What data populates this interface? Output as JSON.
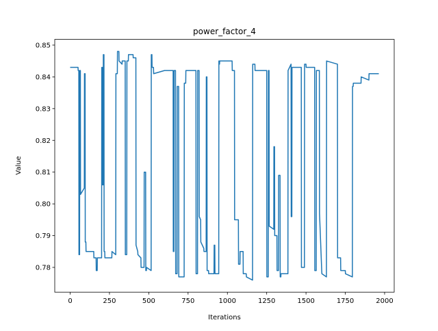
{
  "chart_data": {
    "type": "line",
    "title": "power_factor_4",
    "x_label": "Iterations",
    "y_label": "Value",
    "color": "#1f77b4",
    "x": [
      0,
      50,
      51,
      55,
      56,
      60,
      61,
      65,
      66,
      90,
      91,
      95,
      96,
      100,
      101,
      150,
      151,
      165,
      166,
      172,
      173,
      200,
      201,
      205,
      206,
      210,
      211,
      215,
      216,
      220,
      221,
      265,
      266,
      290,
      291,
      300,
      301,
      310,
      311,
      330,
      331,
      350,
      351,
      360,
      361,
      370,
      371,
      400,
      401,
      418,
      419,
      430,
      431,
      450,
      451,
      470,
      471,
      480,
      481,
      485,
      486,
      515,
      516,
      520,
      521,
      530,
      531,
      600,
      601,
      655,
      656,
      660,
      661,
      670,
      671,
      680,
      681,
      690,
      691,
      725,
      726,
      735,
      736,
      800,
      801,
      810,
      811,
      820,
      821,
      830,
      831,
      850,
      851,
      865,
      866,
      870,
      871,
      880,
      881,
      915,
      916,
      920,
      921,
      945,
      946,
      950,
      951,
      1030,
      1031,
      1045,
      1046,
      1070,
      1071,
      1080,
      1081,
      1100,
      1101,
      1120,
      1121,
      1160,
      1161,
      1175,
      1176,
      1250,
      1251,
      1260,
      1261,
      1265,
      1266,
      1295,
      1296,
      1300,
      1301,
      1315,
      1316,
      1325,
      1326,
      1335,
      1336,
      1340,
      1341,
      1385,
      1386,
      1405,
      1406,
      1410,
      1411,
      1470,
      1471,
      1490,
      1491,
      1500,
      1501,
      1555,
      1556,
      1565,
      1566,
      1585,
      1586,
      1600,
      1601,
      1630,
      1631,
      1700,
      1701,
      1720,
      1721,
      1750,
      1751,
      1795,
      1796,
      1800,
      1801,
      1850,
      1851,
      1900,
      1901,
      1963
    ],
    "values": [
      0.843,
      0.843,
      0.842,
      0.842,
      0.784,
      0.784,
      0.842,
      0.842,
      0.803,
      0.805,
      0.841,
      0.841,
      0.788,
      0.788,
      0.785,
      0.785,
      0.783,
      0.783,
      0.779,
      0.779,
      0.783,
      0.783,
      0.843,
      0.843,
      0.806,
      0.806,
      0.847,
      0.847,
      0.785,
      0.785,
      0.783,
      0.783,
      0.785,
      0.784,
      0.841,
      0.841,
      0.848,
      0.848,
      0.845,
      0.844,
      0.845,
      0.845,
      0.784,
      0.784,
      0.845,
      0.845,
      0.847,
      0.847,
      0.846,
      0.846,
      0.787,
      0.785,
      0.784,
      0.783,
      0.78,
      0.78,
      0.81,
      0.81,
      0.779,
      0.779,
      0.78,
      0.779,
      0.847,
      0.847,
      0.843,
      0.843,
      0.841,
      0.842,
      0.842,
      0.842,
      0.785,
      0.785,
      0.842,
      0.842,
      0.778,
      0.778,
      0.837,
      0.837,
      0.777,
      0.777,
      0.838,
      0.838,
      0.842,
      0.842,
      0.778,
      0.778,
      0.842,
      0.842,
      0.796,
      0.795,
      0.788,
      0.786,
      0.785,
      0.785,
      0.84,
      0.84,
      0.779,
      0.779,
      0.778,
      0.778,
      0.787,
      0.787,
      0.778,
      0.778,
      0.845,
      0.844,
      0.845,
      0.845,
      0.842,
      0.842,
      0.795,
      0.795,
      0.781,
      0.781,
      0.785,
      0.785,
      0.778,
      0.778,
      0.777,
      0.776,
      0.844,
      0.844,
      0.842,
      0.842,
      0.777,
      0.777,
      0.842,
      0.842,
      0.793,
      0.792,
      0.818,
      0.818,
      0.79,
      0.79,
      0.779,
      0.779,
      0.809,
      0.809,
      0.777,
      0.777,
      0.778,
      0.778,
      0.842,
      0.844,
      0.796,
      0.796,
      0.843,
      0.843,
      0.78,
      0.78,
      0.844,
      0.844,
      0.843,
      0.843,
      0.779,
      0.779,
      0.842,
      0.842,
      0.797,
      0.779,
      0.778,
      0.777,
      0.845,
      0.844,
      0.783,
      0.783,
      0.779,
      0.779,
      0.778,
      0.777,
      0.837,
      0.837,
      0.838,
      0.838,
      0.84,
      0.839,
      0.841,
      0.841
    ],
    "xlim": [
      -98,
      2061
    ],
    "ylim": [
      0.7722,
      0.8518
    ],
    "xticks": [
      0,
      250,
      500,
      750,
      1000,
      1250,
      1500,
      1750,
      2000
    ],
    "yticks": [
      0.78,
      0.79,
      {
        "value": 0.8,
        "label": "0.80"
      },
      0.81,
      0.82,
      0.83,
      0.84,
      0.85
    ]
  }
}
